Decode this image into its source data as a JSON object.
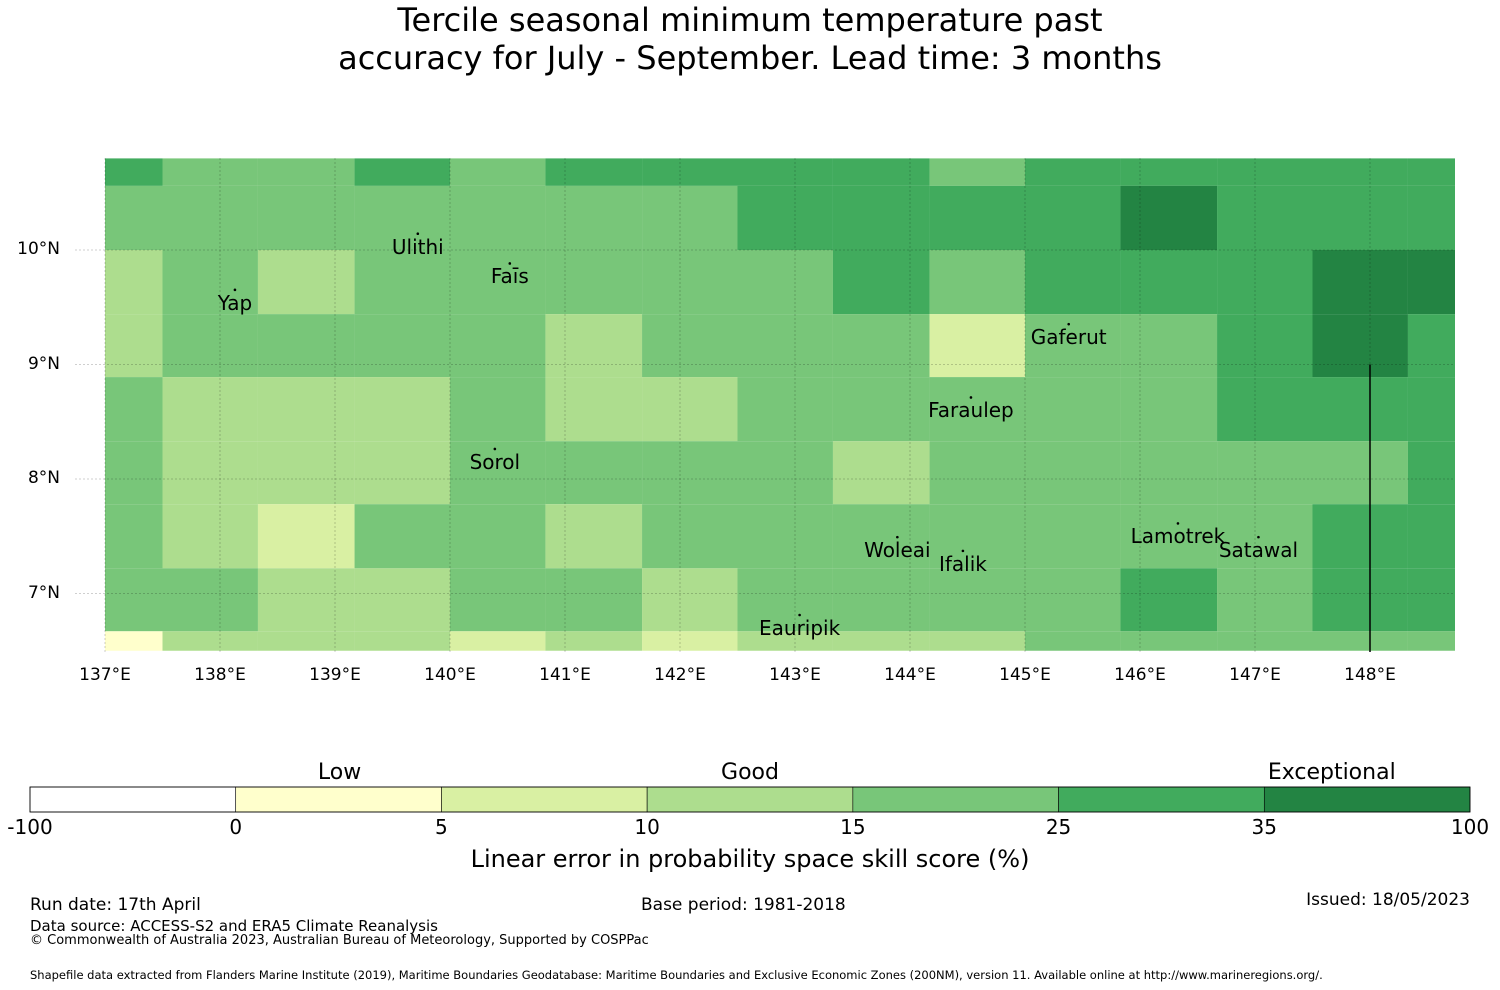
{
  "title": {
    "line1": "Tercile seasonal minimum temperature past",
    "line2": "accuracy for July - September. Lead time: 3 months"
  },
  "map": {
    "lon_range": [
      137.0,
      149.0
    ],
    "lat_range": [
      6.5,
      10.8
    ],
    "x_ticks": [
      {
        "lon": 137,
        "label": "137°E"
      },
      {
        "lon": 138,
        "label": "138°E"
      },
      {
        "lon": 139,
        "label": "139°E"
      },
      {
        "lon": 140,
        "label": "140°E"
      },
      {
        "lon": 141,
        "label": "141°E"
      },
      {
        "lon": 142,
        "label": "142°E"
      },
      {
        "lon": 143,
        "label": "143°E"
      },
      {
        "lon": 144,
        "label": "144°E"
      },
      {
        "lon": 145,
        "label": "145°E"
      },
      {
        "lon": 146,
        "label": "146°E"
      },
      {
        "lon": 147,
        "label": "147°E"
      },
      {
        "lon": 148,
        "label": "148°E"
      }
    ],
    "y_ticks": [
      {
        "lat": 10,
        "label": "10°N"
      },
      {
        "lat": 9,
        "label": "9°N"
      },
      {
        "lat": 8,
        "label": "8°N"
      },
      {
        "lat": 7,
        "label": "7°N"
      }
    ],
    "col_edges_lon": [
      137.0,
      137.5,
      138.33,
      139.17,
      140.0,
      140.83,
      141.67,
      142.5,
      143.33,
      144.17,
      145.0,
      145.83,
      146.67,
      147.5,
      148.33,
      149.0
    ],
    "row_edges_lat": [
      10.8,
      10.56,
      10.0,
      9.44,
      8.89,
      8.33,
      7.78,
      7.22,
      6.67,
      6.5
    ],
    "grid_class_note": "class index: 1=0-5, 2=5-10, 3=10-15, 4=15-25, 5=25-35, 6=35-100",
    "grid": [
      [
        5,
        4,
        4,
        5,
        4,
        5,
        5,
        5,
        5,
        4,
        5,
        5,
        5,
        5,
        5
      ],
      [
        4,
        4,
        4,
        4,
        4,
        4,
        4,
        5,
        5,
        5,
        5,
        6,
        5,
        5,
        5
      ],
      [
        3,
        4,
        3,
        4,
        4,
        4,
        4,
        4,
        5,
        4,
        5,
        5,
        5,
        6,
        6
      ],
      [
        3,
        4,
        4,
        4,
        4,
        3,
        4,
        4,
        4,
        2,
        4,
        4,
        5,
        6,
        5
      ],
      [
        4,
        3,
        3,
        3,
        4,
        3,
        3,
        4,
        4,
        4,
        4,
        4,
        5,
        5,
        5
      ],
      [
        4,
        3,
        3,
        3,
        4,
        4,
        4,
        4,
        3,
        4,
        4,
        4,
        4,
        4,
        5
      ],
      [
        4,
        3,
        2,
        4,
        4,
        3,
        4,
        4,
        4,
        4,
        4,
        4,
        4,
        5,
        5
      ],
      [
        4,
        4,
        3,
        3,
        4,
        4,
        3,
        4,
        4,
        4,
        4,
        5,
        4,
        5,
        5
      ],
      [
        1,
        3,
        3,
        3,
        2,
        3,
        2,
        3,
        3,
        3,
        4,
        4,
        4,
        4,
        4
      ]
    ],
    "islands": [
      {
        "name": "Ulithi",
        "lon": 139.72,
        "lat": 10.02
      },
      {
        "name": "Faīs",
        "lon": 140.52,
        "lat": 9.76
      },
      {
        "name": "Yap",
        "lon": 138.13,
        "lat": 9.53
      },
      {
        "name": "Gaferut",
        "lon": 145.38,
        "lat": 9.23
      },
      {
        "name": "Faraulep",
        "lon": 144.53,
        "lat": 8.59
      },
      {
        "name": "Sorol",
        "lon": 140.39,
        "lat": 8.14
      },
      {
        "name": "Woleai",
        "lon": 143.89,
        "lat": 7.37
      },
      {
        "name": "Ifalik",
        "lon": 144.46,
        "lat": 7.25
      },
      {
        "name": "Lamotrek",
        "lon": 146.33,
        "lat": 7.49
      },
      {
        "name": "Satawal",
        "lon": 147.03,
        "lat": 7.37
      },
      {
        "name": "Eauripik",
        "lon": 143.04,
        "lat": 6.69
      }
    ],
    "boundary_line": {
      "lon": 148.0,
      "lat_from": 9.0,
      "lat_to": 6.5
    }
  },
  "legend": {
    "categories": [
      {
        "label": "Low",
        "position": 0.215
      },
      {
        "label": "Good",
        "position": 0.5
      },
      {
        "label": "Exceptional",
        "position": 0.904
      }
    ],
    "bins": [
      {
        "color": "#ffffff"
      },
      {
        "color": "#ffffcc"
      },
      {
        "color": "#d9f0a3"
      },
      {
        "color": "#addd8e"
      },
      {
        "color": "#78c679"
      },
      {
        "color": "#41ab5d"
      },
      {
        "color": "#238443"
      }
    ],
    "tick_labels": [
      "-100",
      "0",
      "5",
      "10",
      "15",
      "25",
      "35",
      "100"
    ],
    "axis_label": "Linear error in probability space skill score (%)"
  },
  "footer": {
    "run_date": "Run date: 17th April",
    "base_period": "Base period: 1981-2018",
    "issued": "Issued: 18/05/2023",
    "data_source": "Data source: ACCESS-S2 and ERA5 Climate Reanalysis",
    "copyright": "© Commonwealth of Australia 2023, Australian Bureau of Meteorology, Supported by COSPPac",
    "shapefile": "Shapefile data extracted from Flanders Marine Institute (2019), Maritime Boundaries Geodatabase: Maritime Boundaries and Exclusive Economic Zones (200NM), version 11. Available online at http://www.marineregions.org/."
  }
}
